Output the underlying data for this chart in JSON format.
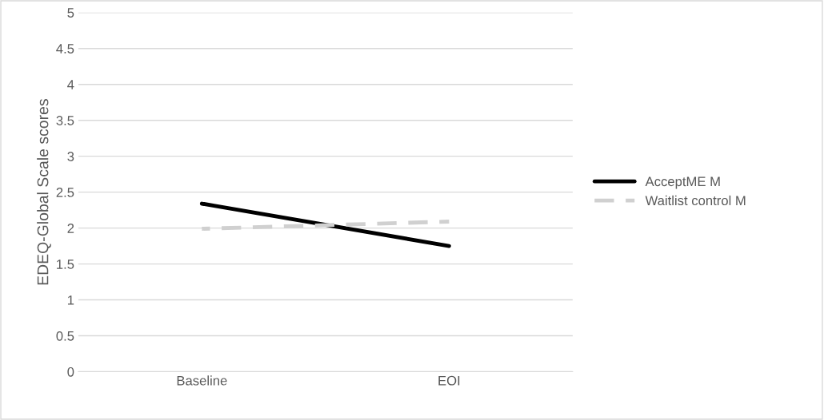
{
  "chart_data": {
    "type": "line",
    "ylabel": "EDEQ-Global Scale scores",
    "categories": [
      "Baseline",
      "EOI"
    ],
    "series": [
      {
        "name": "AcceptME M",
        "color": "#000000",
        "values": [
          2.34,
          1.75
        ],
        "line_style": "solid"
      },
      {
        "name": "Waitlist control M",
        "color": "#d0d0d0",
        "values": [
          1.99,
          2.09
        ],
        "line_style": "dashed"
      }
    ],
    "ylim": [
      0,
      5
    ],
    "yticks": [
      0,
      0.5,
      1,
      1.5,
      2,
      2.5,
      3,
      3.5,
      4,
      4.5,
      5
    ],
    "grid": "y",
    "legend": "right"
  }
}
